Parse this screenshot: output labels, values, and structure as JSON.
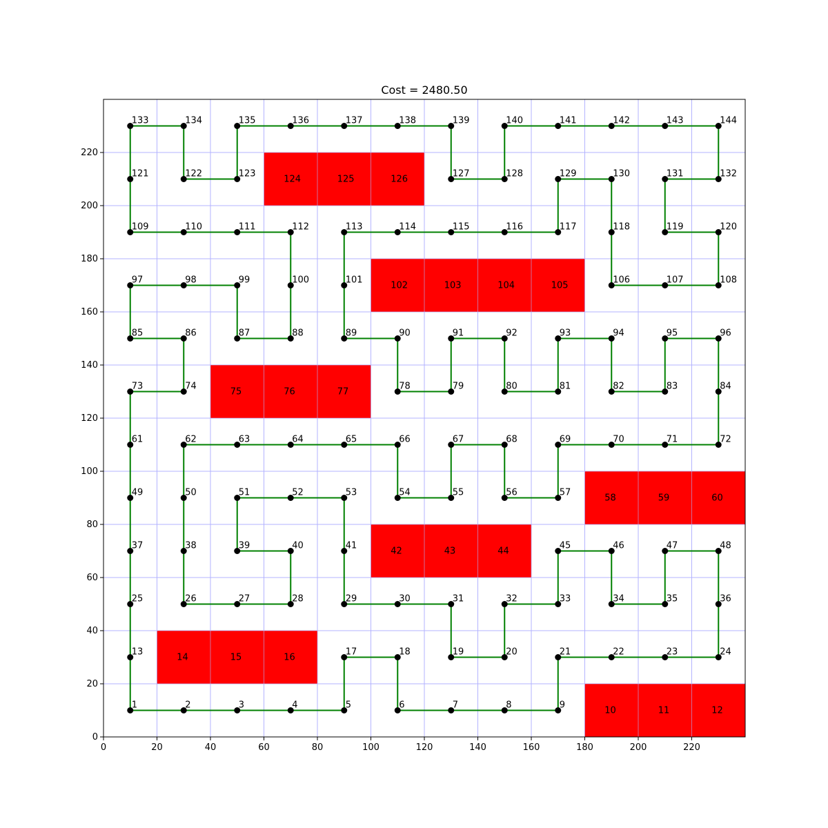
{
  "chart_data": {
    "type": "scatter",
    "title": "Cost = 2480.50",
    "xlabel": "",
    "ylabel": "",
    "xlim": [
      0,
      240
    ],
    "ylim": [
      0,
      240
    ],
    "x_ticks": [
      0,
      20,
      40,
      60,
      80,
      100,
      120,
      140,
      160,
      180,
      200,
      220
    ],
    "y_ticks": [
      0,
      20,
      40,
      60,
      80,
      100,
      120,
      140,
      160,
      180,
      200,
      220
    ],
    "grid": true,
    "grid_spacing": 20,
    "colors": {
      "grid": "#b3b3ff",
      "path": "#008000",
      "node": "#000000",
      "obstacle": "#ff0000"
    },
    "nodes": {
      "columns": 12,
      "rows": 12,
      "x_start": 10,
      "y_start": 10,
      "spacing": 20,
      "labels_start": 1,
      "labels_end": 144
    },
    "obstacles": [
      10,
      11,
      12,
      14,
      15,
      16,
      42,
      43,
      44,
      58,
      59,
      60,
      75,
      76,
      77,
      102,
      103,
      104,
      105,
      124,
      125,
      126
    ],
    "path": [
      1,
      2,
      3,
      4,
      5,
      17,
      18,
      6,
      7,
      8,
      9,
      21,
      22,
      23,
      24,
      36,
      48,
      47,
      35,
      34,
      46,
      45,
      33,
      32,
      20,
      19,
      31,
      30,
      29,
      41,
      53,
      52,
      51,
      39,
      40,
      28,
      27,
      26,
      38,
      50,
      62,
      63,
      64,
      65,
      66,
      54,
      55,
      67,
      68,
      56,
      57,
      69,
      70,
      71,
      72,
      84,
      96,
      95,
      83,
      82,
      94,
      93,
      81,
      80,
      92,
      91,
      79,
      78,
      90,
      89,
      101,
      113,
      114,
      115,
      116,
      117,
      129,
      130,
      118,
      106,
      107,
      108,
      120,
      119,
      131,
      132,
      144,
      143,
      142,
      141,
      140,
      128,
      127,
      139,
      138,
      137,
      136,
      135,
      123,
      122,
      134,
      133,
      121,
      109,
      110,
      111,
      112,
      100,
      88,
      87,
      99,
      98,
      97,
      85,
      86,
      74,
      73,
      61,
      49,
      37,
      25,
      13,
      1
    ]
  }
}
